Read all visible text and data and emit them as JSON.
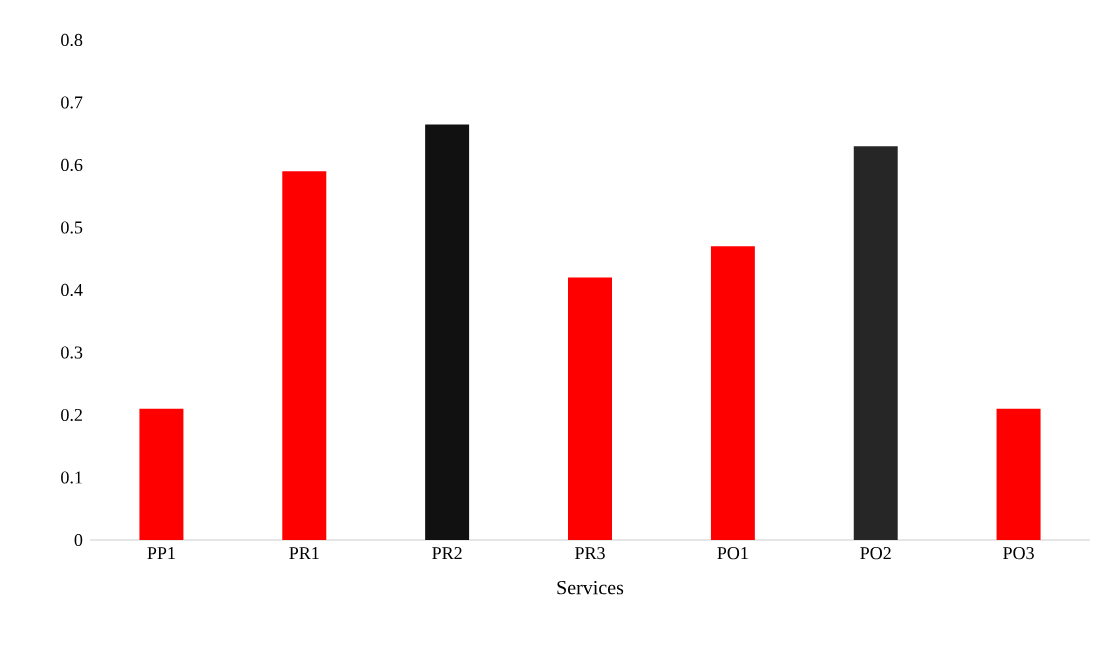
{
  "chart_data": {
    "type": "bar",
    "xlabel": "Services",
    "categories": [
      "PP1",
      "PR1",
      "PR2",
      "PR3",
      "PO1",
      "PO2",
      "PO3"
    ],
    "values": [
      0.21,
      0.59,
      0.665,
      0.42,
      0.47,
      0.63,
      0.21
    ],
    "colors": [
      "#ff0000",
      "#ff0000",
      "#111111",
      "#ff0000",
      "#ff0000",
      "#262626",
      "#ff0000"
    ],
    "ylim": [
      0,
      0.8
    ],
    "yticks": [
      0,
      0.1,
      0.2,
      0.3,
      0.4,
      0.5,
      0.6,
      0.7,
      0.8
    ],
    "grid": false
  }
}
